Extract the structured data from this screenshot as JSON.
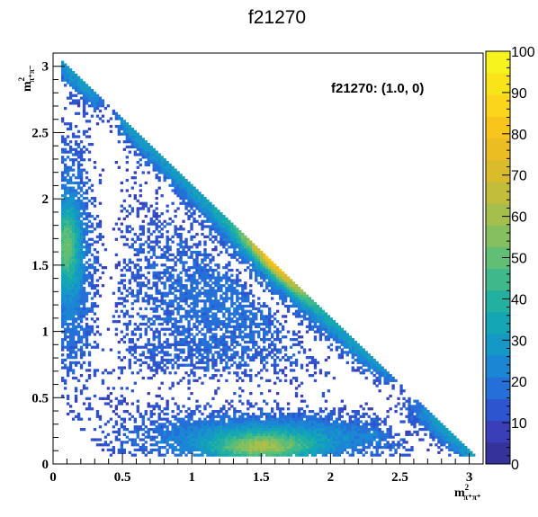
{
  "chart_data": {
    "type": "heatmap",
    "title": "f21270",
    "annotation": "f21270: (1.0, 0)",
    "xlabel": {
      "base": "m",
      "sup": "2",
      "sub": "π⁺π⁺"
    },
    "ylabel": {
      "base": "m",
      "sup": "2",
      "sub": "π⁺π⁻"
    },
    "xlim": [
      0,
      3.1
    ],
    "ylim": [
      0,
      3.1
    ],
    "x_ticks": [
      {
        "value": 0,
        "label": "0"
      },
      {
        "value": 0.5,
        "label": "0.5"
      },
      {
        "value": 1,
        "label": "1"
      },
      {
        "value": 1.5,
        "label": "1.5"
      },
      {
        "value": 2,
        "label": "2"
      },
      {
        "value": 2.5,
        "label": "2.5"
      },
      {
        "value": 3,
        "label": "3"
      }
    ],
    "y_ticks": [
      {
        "value": 0,
        "label": "0"
      },
      {
        "value": 0.5,
        "label": "0.5"
      },
      {
        "value": 1,
        "label": "1"
      },
      {
        "value": 1.5,
        "label": "1.5"
      },
      {
        "value": 2,
        "label": "2"
      },
      {
        "value": 2.5,
        "label": "2.5"
      },
      {
        "value": 3,
        "label": "3"
      }
    ],
    "zlim": [
      0,
      100
    ],
    "z_ticks": [
      {
        "value": 0,
        "label": "0"
      },
      {
        "value": 10,
        "label": "10"
      },
      {
        "value": 20,
        "label": "20"
      },
      {
        "value": 30,
        "label": "30"
      },
      {
        "value": 40,
        "label": "40"
      },
      {
        "value": 50,
        "label": "50"
      },
      {
        "value": 60,
        "label": "60"
      },
      {
        "value": 70,
        "label": "70"
      },
      {
        "value": 80,
        "label": "80"
      },
      {
        "value": 90,
        "label": "90"
      },
      {
        "value": 100,
        "label": "100"
      }
    ],
    "palette": [
      "#35339b",
      "#3a3fb8",
      "#2d55cf",
      "#2470d8",
      "#1b86d4",
      "#1698c7",
      "#14a6b5",
      "#24b0a0",
      "#3fb88c",
      "#62bd75",
      "#85bf60",
      "#a6bf4c",
      "#c2bd3b",
      "#d9bb2c",
      "#ebbd22",
      "#f8c51d",
      "#fbd51c",
      "#f9e41a",
      "#f7f31e"
    ],
    "regions": [
      {
        "name": "hot band along upper kinematic edge",
        "x": [
          1.45,
          2.0
        ],
        "y": [
          1.5,
          2.0
        ],
        "z_peak": 100
      },
      {
        "name": "low-mass band",
        "x": [
          1.0,
          2.3
        ],
        "y": [
          0.05,
          0.4
        ],
        "z_peak": 55
      },
      {
        "name": "left edge band",
        "x": [
          0.05,
          0.3
        ],
        "y": [
          1.0,
          2.5
        ],
        "z_peak": 45
      },
      {
        "name": "central lobe",
        "x": [
          0.6,
          2.0
        ],
        "y": [
          0.8,
          1.8
        ],
        "z_peak": 25
      }
    ]
  }
}
